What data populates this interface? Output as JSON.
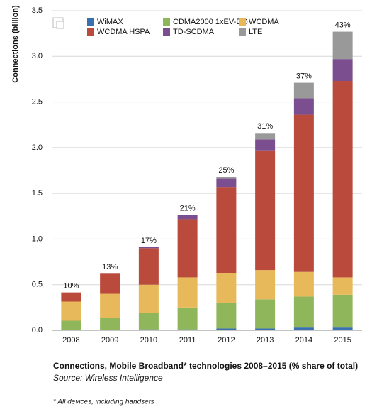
{
  "chart_data": {
    "type": "stacked_bar",
    "y_label": "Connections (billion)",
    "title": "Connections, Mobile Broadband* technologies 2008–2015 (% share of total)",
    "source": "Source: Wireless Intelligence",
    "footnote": "* All devices, including handsets",
    "categories": [
      "2008",
      "2009",
      "2010",
      "2011",
      "2012",
      "2013",
      "2014",
      "2015"
    ],
    "share_labels": [
      "10%",
      "13%",
      "17%",
      "21%",
      "25%",
      "31%",
      "37%",
      "43%"
    ],
    "series": [
      {
        "name": "WiMAX",
        "color": "#3a6fb0",
        "values": [
          0.005,
          0.005,
          0.01,
          0.01,
          0.02,
          0.02,
          0.03,
          0.03
        ]
      },
      {
        "name": "CDMA2000 1xEV-DO",
        "color": "#8fb65a",
        "values": [
          0.1,
          0.135,
          0.18,
          0.24,
          0.28,
          0.32,
          0.34,
          0.36
        ]
      },
      {
        "name": "WCDMA",
        "color": "#e8b95a",
        "values": [
          0.21,
          0.26,
          0.31,
          0.33,
          0.33,
          0.32,
          0.27,
          0.19
        ]
      },
      {
        "name": "WCDMA HSPA",
        "color": "#b94a3c",
        "values": [
          0.1,
          0.22,
          0.4,
          0.63,
          0.94,
          1.31,
          1.72,
          2.15
        ]
      },
      {
        "name": "TD-SCDMA",
        "color": "#7b4f8f",
        "values": [
          0,
          0,
          0.01,
          0.05,
          0.09,
          0.12,
          0.18,
          0.24
        ]
      },
      {
        "name": "LTE",
        "color": "#999999",
        "values": [
          0,
          0,
          0,
          0.005,
          0.02,
          0.07,
          0.17,
          0.3
        ]
      }
    ],
    "ylim": [
      0,
      3.5
    ],
    "yticks": [
      {
        "value": 0,
        "label": "0.0"
      },
      0.5,
      {
        "value": 1,
        "label": "1.0"
      },
      1.5,
      {
        "value": 2,
        "label": "2.0"
      },
      2.5,
      {
        "value": 3,
        "label": "3.0"
      },
      3.5
    ],
    "grid": true
  }
}
